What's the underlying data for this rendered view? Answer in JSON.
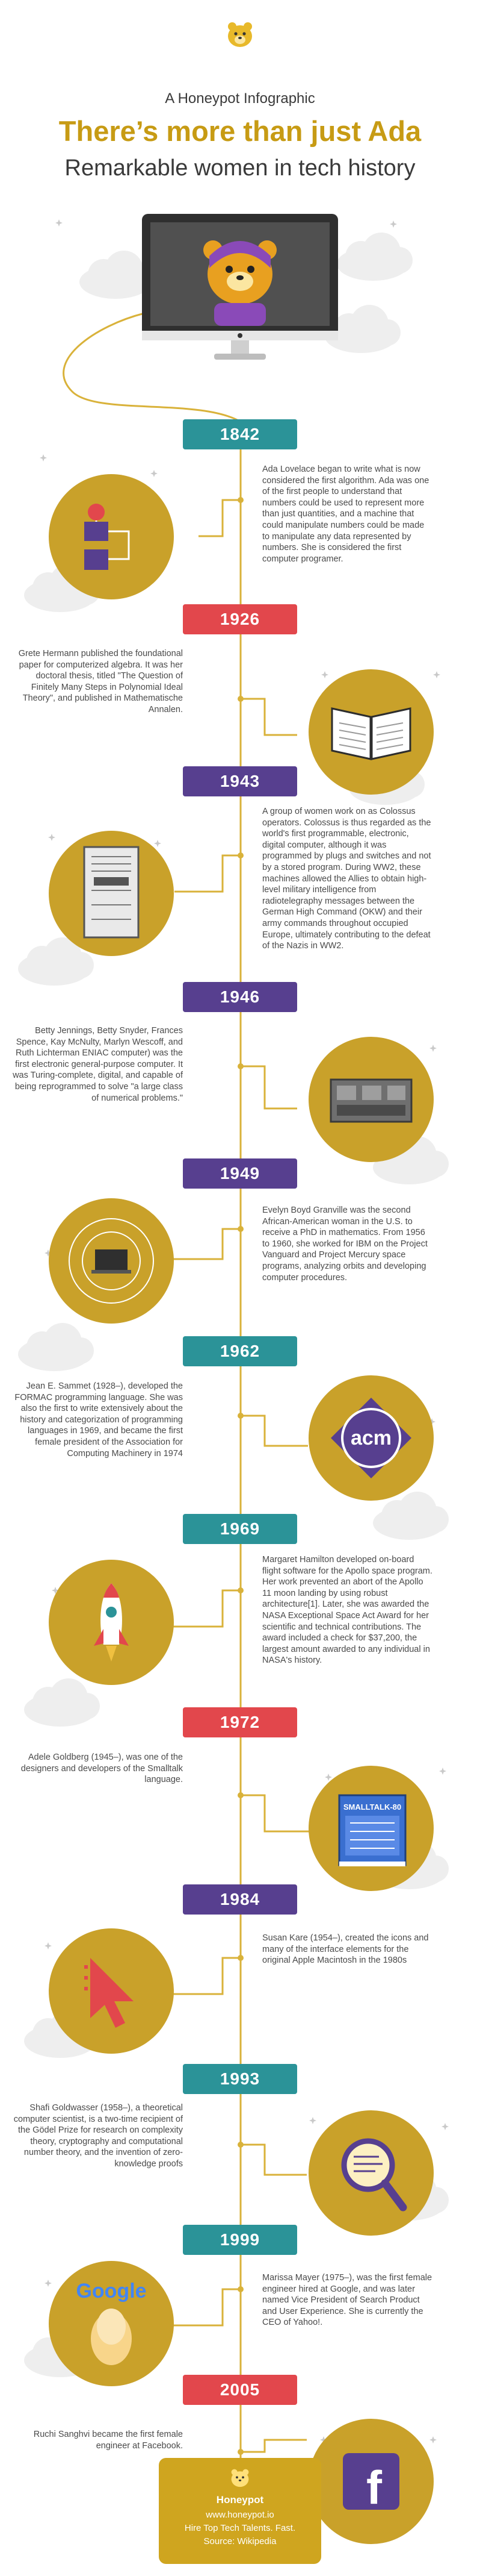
{
  "header": {
    "brand": "A Honeypot Infographic",
    "title": "There’s more than just Ada",
    "subtitle": "Remarkable women in tech history"
  },
  "colors": {
    "gold": "#c79b14",
    "teal": "#2b9398",
    "red": "#e2474c",
    "purple": "#573f8f",
    "line": "#d9b23a"
  },
  "events": [
    {
      "year": "1842",
      "color": "teal",
      "icon": "engine-diagram-icon",
      "text": "Ada Lovelace began to write what is now considered the first algorithm. Ada was one of the first people to understand that numbers could be used to represent more than just quantities, and a machine that could manipulate numbers could be made to manipulate any data represented by numbers. She is considered the first computer programer."
    },
    {
      "year": "1926",
      "color": "red",
      "icon": "open-book-icon",
      "text": "Grete Hermann published the foundational paper for computerized algebra. It was her doctoral thesis, titled \"The Question of Finitely Many Steps in Polynomial Ideal Theory\", and published in Mathematische Annalen."
    },
    {
      "year": "1943",
      "color": "purple",
      "icon": "colossus-machine-icon",
      "text": "A group of women work on as Colossus operators. Colossus is thus regarded as the world's first programmable, electronic, digital computer, although it was programmed by plugs and switches and not by a stored program.  During WW2, these machines allowed the Allies to obtain high-level military intelligence from radiotelegraphy messages between the German High Command (OKW) and their army commands throughout occupied Europe, ultimately contributing to the defeat of the Nazis in WW2."
    },
    {
      "year": "1946",
      "color": "purple",
      "icon": "eniac-computer-icon",
      "text": "Betty Jennings, Betty Snyder, Frances Spence, Kay McNulty, Marlyn Wescoff, and Ruth Lichterman  ENIAC computer) was the first electronic general-purpose computer. It was Turing-complete, digital, and capable of being reprogrammed to solve \"a large class of numerical problems.\""
    },
    {
      "year": "1949",
      "color": "purple",
      "icon": "orbit-laptop-icon",
      "text": "Evelyn Boyd Granville was the second African-American woman in the U.S. to receive a PhD in mathematics. From 1956 to 1960, she worked for IBM on the Project Vanguard and Project Mercury space programs, analyzing orbits and developing computer procedures."
    },
    {
      "year": "1962",
      "color": "teal",
      "icon": "acm-logo-icon",
      "logo_text": "acm",
      "text": "Jean E. Sammet (1928–), developed the FORMAC programming language. She was also the first to write extensively about the history and categorization of programming languages in 1969, and became the first female president of the Association for Computing Machinery in 1974"
    },
    {
      "year": "1969",
      "color": "teal",
      "icon": "rocket-icon",
      "text": "Margaret Hamilton developed on-board flight software for the Apollo space program. Her work prevented an abort of the Apollo 11 moon landing by using robust architecture[1]. Later, she was awarded the NASA Exceptional Space Act Award for her scientific and technical contributions. The award included a check for $37,200, the largest amount awarded to any individual in NASA's history."
    },
    {
      "year": "1972",
      "color": "red",
      "icon": "smalltalk-book-icon",
      "book_text": "SMALLTALK-80",
      "text": "Adele Goldberg (1945–), was one of the designers and developers of the Smalltalk language."
    },
    {
      "year": "1984",
      "color": "purple",
      "icon": "cursor-arrow-icon",
      "text": "Susan Kare (1954–), created the icons and many of the interface elements for the original Apple Macintosh in the 1980s"
    },
    {
      "year": "1993",
      "color": "teal",
      "icon": "magnifier-code-icon",
      "text": "Shafi Goldwasser (1958–), a theoretical computer scientist, is a two-time recipient of the Gödel Prize for research on complexity theory, cryptography and computational number theory, and the invention of zero-knowledge proofs"
    },
    {
      "year": "1999",
      "color": "teal",
      "icon": "google-logo-icon",
      "logo_text": "Google",
      "text": "Marissa Mayer (1975–), was the first female engineer hired at Google, and was later named Vice President of Search Product and User Experience. She is currently the CEO of Yahoo!."
    },
    {
      "year": "2005",
      "color": "red",
      "icon": "facebook-logo-icon",
      "logo_text": "f",
      "text": "Ruchi Sanghvi became the first female engineer at Facebook."
    }
  ],
  "footer": {
    "brand": "Honeypot",
    "url": "www.honeypot.io",
    "tagline": "Hire Top Tech Talents. Fast.",
    "source": "Source: Wikipedia"
  }
}
